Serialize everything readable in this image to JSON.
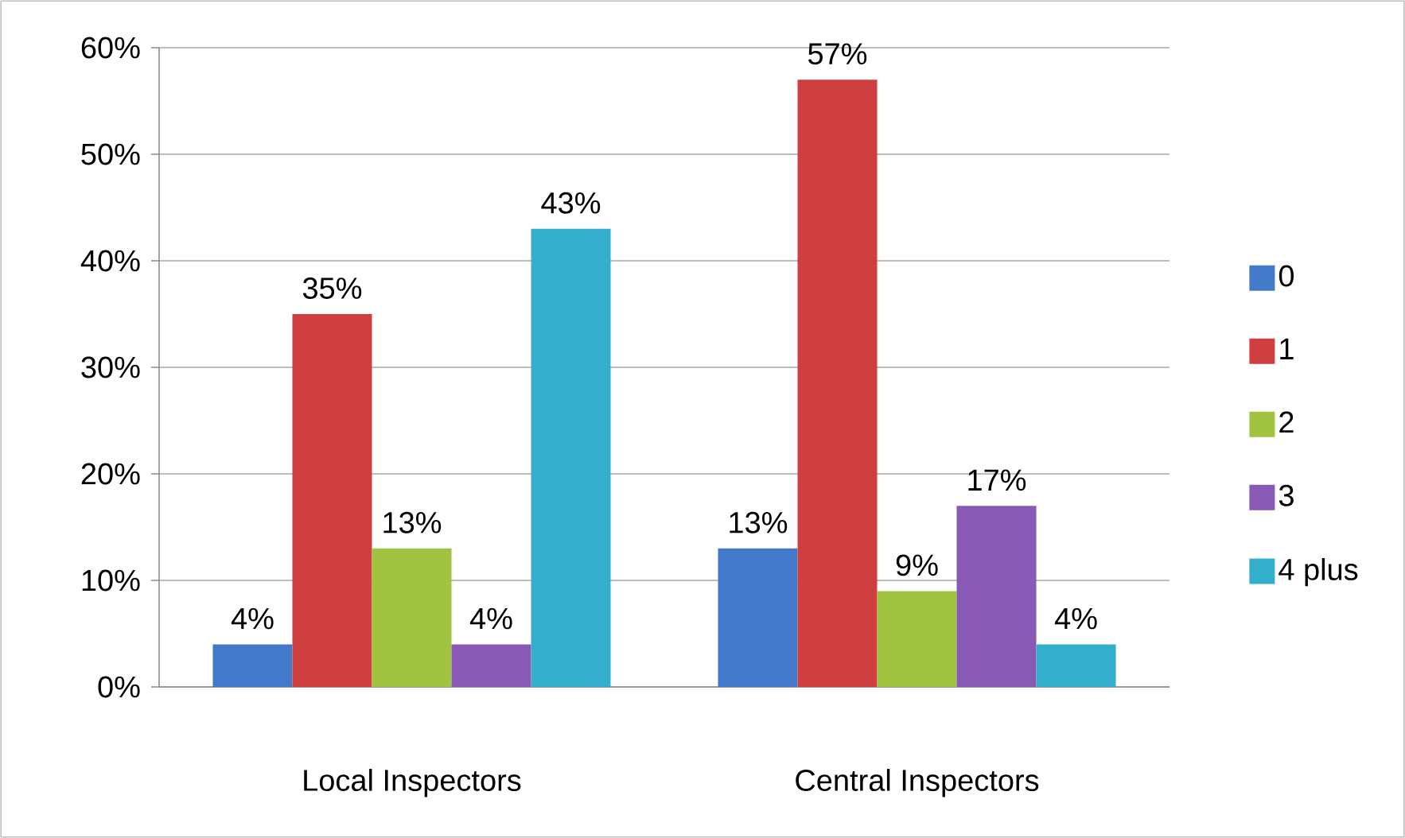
{
  "chart_data": {
    "type": "bar",
    "categories": [
      "Local Inspectors",
      "Central Inspectors"
    ],
    "series": [
      {
        "name": "0",
        "color": "#4279c8",
        "values": [
          4,
          13
        ],
        "value_labels": [
          "4%",
          "13%"
        ]
      },
      {
        "name": "1",
        "color": "#cf3f3f",
        "values": [
          35,
          57
        ],
        "value_labels": [
          "35%",
          "57%"
        ]
      },
      {
        "name": "2",
        "color": "#a1c342",
        "values": [
          13,
          9
        ],
        "value_labels": [
          "13%",
          "9%"
        ]
      },
      {
        "name": "3",
        "color": "#8859b5",
        "values": [
          4,
          17
        ],
        "value_labels": [
          "4%",
          "17%"
        ]
      },
      {
        "name": "4 plus",
        "color": "#34aecd",
        "values": [
          43,
          4
        ],
        "value_labels": [
          "43%",
          "4%"
        ]
      }
    ],
    "ylim": [
      0,
      60
    ],
    "yticks": [
      {
        "value": 0,
        "label": "0%"
      },
      {
        "value": 10,
        "label": "10%"
      },
      {
        "value": 20,
        "label": "20%"
      },
      {
        "value": 30,
        "label": "30%"
      },
      {
        "value": 40,
        "label": "40%"
      },
      {
        "value": 50,
        "label": "50%"
      },
      {
        "value": 60,
        "label": "60%"
      }
    ],
    "grid": "y",
    "legend": "right"
  }
}
